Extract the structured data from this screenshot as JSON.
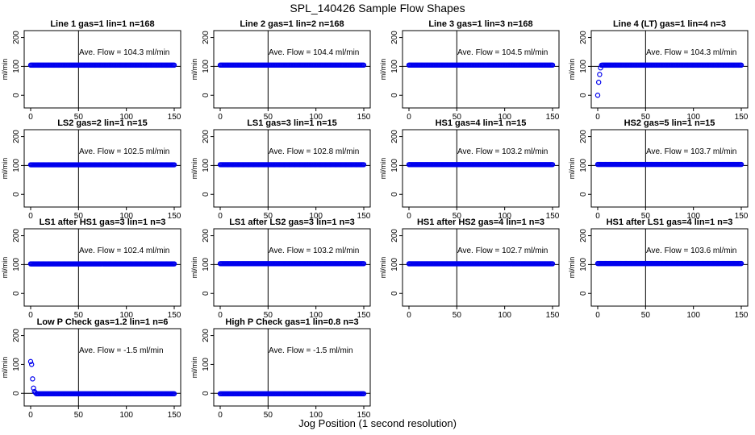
{
  "figure": {
    "title": "SPL_140426  Sample Flow Shapes",
    "xlabel": "Jog Position (1 second resolution)",
    "ylabel": "ml/min"
  },
  "chart_data": [
    {
      "type": "scatter",
      "title": "Line 1 gas=1 lin=1 n=168",
      "annotation": "Ave. Flow = 104.3  ml/min",
      "xlim": [
        0,
        150
      ],
      "ylim": [
        -30,
        210
      ],
      "xticks": [
        0,
        50,
        100,
        150
      ],
      "yticks": [
        0,
        100,
        200
      ],
      "vline": 50,
      "hline": 100,
      "color": "#0000ee",
      "shape": "flat",
      "level": 104.3
    },
    {
      "type": "scatter",
      "title": "Line 2 gas=1 lin=2 n=168",
      "annotation": "Ave. Flow = 104.4  ml/min",
      "xlim": [
        0,
        150
      ],
      "ylim": [
        -30,
        210
      ],
      "xticks": [
        0,
        50,
        100,
        150
      ],
      "yticks": [
        0,
        100,
        200
      ],
      "vline": 50,
      "hline": 100,
      "color": "#0000ee",
      "shape": "flat",
      "level": 104.4
    },
    {
      "type": "scatter",
      "title": "Line 3 gas=1 lin=3 n=168",
      "annotation": "Ave. Flow = 104.5  ml/min",
      "xlim": [
        0,
        150
      ],
      "ylim": [
        -30,
        210
      ],
      "xticks": [
        0,
        50,
        100,
        150
      ],
      "yticks": [
        0,
        100,
        200
      ],
      "vline": 50,
      "hline": 100,
      "color": "#0000ee",
      "shape": "flat",
      "level": 104.5
    },
    {
      "type": "scatter",
      "title": "Line 4 (LT) gas=1 lin=4 n=3",
      "annotation": "Ave. Flow = 104.3  ml/min",
      "xlim": [
        0,
        150
      ],
      "ylim": [
        -30,
        210
      ],
      "xticks": [
        0,
        50,
        100,
        150
      ],
      "yticks": [
        0,
        100,
        200
      ],
      "vline": 50,
      "hline": 100,
      "color": "#0000ee",
      "shape": "rampup",
      "level": 104.3
    },
    {
      "type": "scatter",
      "title": "LS2 gas=2 lin=1 n=15",
      "annotation": "Ave. Flow = 102.5  ml/min",
      "xlim": [
        0,
        150
      ],
      "ylim": [
        -30,
        210
      ],
      "xticks": [
        0,
        50,
        100,
        150
      ],
      "yticks": [
        0,
        100,
        200
      ],
      "vline": 50,
      "hline": 100,
      "color": "#0000ee",
      "shape": "flat",
      "level": 102.5
    },
    {
      "type": "scatter",
      "title": "LS1 gas=3 lin=1 n=15",
      "annotation": "Ave. Flow = 102.8  ml/min",
      "xlim": [
        0,
        150
      ],
      "ylim": [
        -30,
        210
      ],
      "xticks": [
        0,
        50,
        100,
        150
      ],
      "yticks": [
        0,
        100,
        200
      ],
      "vline": 50,
      "hline": 100,
      "color": "#0000ee",
      "shape": "flat",
      "level": 102.8
    },
    {
      "type": "scatter",
      "title": "HS1 gas=4 lin=1 n=15",
      "annotation": "Ave. Flow = 103.2  ml/min",
      "xlim": [
        0,
        150
      ],
      "ylim": [
        -30,
        210
      ],
      "xticks": [
        0,
        50,
        100,
        150
      ],
      "yticks": [
        0,
        100,
        200
      ],
      "vline": 50,
      "hline": 100,
      "color": "#0000ee",
      "shape": "flat",
      "level": 103.2
    },
    {
      "type": "scatter",
      "title": "HS2 gas=5 lin=1 n=15",
      "annotation": "Ave. Flow = 103.7  ml/min",
      "xlim": [
        0,
        150
      ],
      "ylim": [
        -30,
        210
      ],
      "xticks": [
        0,
        50,
        100,
        150
      ],
      "yticks": [
        0,
        100,
        200
      ],
      "vline": 50,
      "hline": 100,
      "color": "#0000ee",
      "shape": "flat",
      "level": 103.7
    },
    {
      "type": "scatter",
      "title": "LS1 after HS1 gas=3 lin=1 n=3",
      "annotation": "Ave. Flow = 102.4  ml/min",
      "xlim": [
        0,
        150
      ],
      "ylim": [
        -30,
        210
      ],
      "xticks": [
        0,
        50,
        100,
        150
      ],
      "yticks": [
        0,
        100,
        200
      ],
      "vline": 50,
      "hline": 100,
      "color": "#0000ee",
      "shape": "flat",
      "level": 102.4
    },
    {
      "type": "scatter",
      "title": "LS1 after LS2 gas=3 lin=1 n=3",
      "annotation": "Ave. Flow = 103.2  ml/min",
      "xlim": [
        0,
        150
      ],
      "ylim": [
        -30,
        210
      ],
      "xticks": [
        0,
        50,
        100,
        150
      ],
      "yticks": [
        0,
        100,
        200
      ],
      "vline": 50,
      "hline": 100,
      "color": "#0000ee",
      "shape": "flat",
      "level": 103.2
    },
    {
      "type": "scatter",
      "title": "HS1 after HS2 gas=4 lin=1 n=3",
      "annotation": "Ave. Flow = 102.7  ml/min",
      "xlim": [
        0,
        150
      ],
      "ylim": [
        -30,
        210
      ],
      "xticks": [
        0,
        50,
        100,
        150
      ],
      "yticks": [
        0,
        100,
        200
      ],
      "vline": 50,
      "hline": 100,
      "color": "#0000ee",
      "shape": "flat",
      "level": 102.7
    },
    {
      "type": "scatter",
      "title": "HS1 after LS1 gas=4 lin=1 n=3",
      "annotation": "Ave. Flow = 103.6  ml/min",
      "xlim": [
        0,
        150
      ],
      "ylim": [
        -30,
        210
      ],
      "xticks": [
        0,
        50,
        100,
        150
      ],
      "yticks": [
        0,
        100,
        200
      ],
      "vline": 50,
      "hline": 100,
      "color": "#0000ee",
      "shape": "flat",
      "level": 103.6
    },
    {
      "type": "scatter",
      "title": "Low P Check gas=1.2 lin=1 n=6",
      "annotation": "Ave. Flow =  -1.5  ml/min",
      "xlim": [
        0,
        150
      ],
      "ylim": [
        -30,
        210
      ],
      "xticks": [
        0,
        50,
        100,
        150
      ],
      "yticks": [
        0,
        100,
        200
      ],
      "vline": 50,
      "hline": 0,
      "color": "#0000ee",
      "shape": "decay",
      "level": -1.5
    },
    {
      "type": "scatter",
      "title": "High P Check gas=1 lin=0.8 n=3",
      "annotation": "Ave. Flow =  -1.5  ml/min",
      "xlim": [
        0,
        150
      ],
      "ylim": [
        -30,
        210
      ],
      "xticks": [
        0,
        50,
        100,
        150
      ],
      "yticks": [
        0,
        100,
        200
      ],
      "vline": 50,
      "hline": 0,
      "color": "#0000ee",
      "shape": "flat",
      "level": -1.5
    }
  ]
}
